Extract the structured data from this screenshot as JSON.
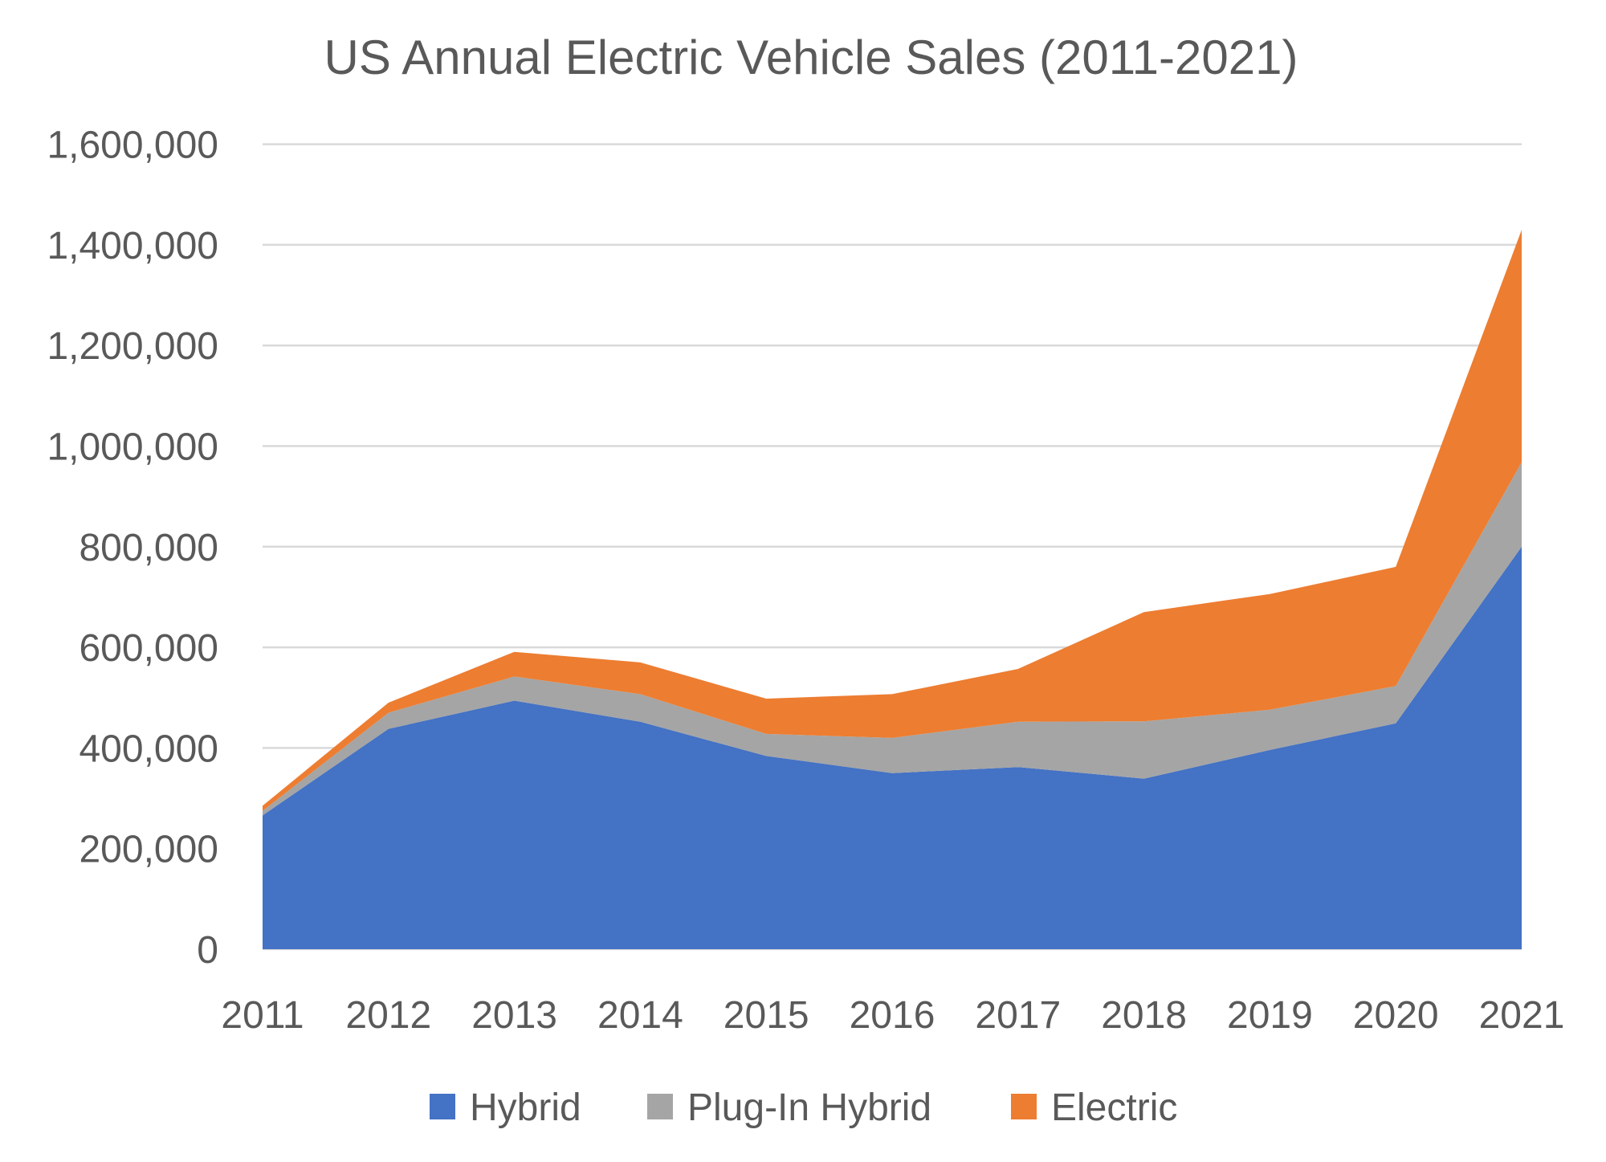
{
  "title": "US Annual Electric Vehicle Sales (2011-2021)",
  "colors": {
    "background": "#FFFFFF",
    "gridline": "#D9D9D9",
    "axis_text": "#595959",
    "title_text": "#595959",
    "hybrid": "#4472C4",
    "plug_in_hybrid": "#A5A5A5",
    "electric": "#ED7D31"
  },
  "chart_data": {
    "type": "area",
    "stacked": true,
    "title": "US Annual Electric Vehicle Sales (2011-2021)",
    "categories": [
      "2011",
      "2012",
      "2013",
      "2014",
      "2015",
      "2016",
      "2017",
      "2018",
      "2019",
      "2020",
      "2021"
    ],
    "series": [
      {
        "name": "Hybrid",
        "color": "#4472C4",
        "values": [
          266000,
          438000,
          494000,
          452000,
          384000,
          350000,
          362000,
          339000,
          396000,
          449000,
          800000
        ]
      },
      {
        "name": "Plug-In Hybrid",
        "color": "#A5A5A5",
        "values": [
          9000,
          32000,
          48000,
          55000,
          44000,
          70000,
          90000,
          114000,
          80000,
          74000,
          168000
        ]
      },
      {
        "name": "Electric",
        "color": "#ED7D31",
        "values": [
          10000,
          20000,
          49000,
          63000,
          70000,
          87000,
          105000,
          217000,
          230000,
          237000,
          462000
        ]
      }
    ],
    "stacked_totals": [
      285000,
      490000,
      591000,
      570000,
      498000,
      507000,
      557000,
      670000,
      706000,
      760000,
      1430000
    ],
    "ylim": [
      0,
      1600000
    ],
    "ytick_step": 200000,
    "ytick_labels": [
      "0",
      "200,000",
      "400,000",
      "600,000",
      "800,000",
      "1,000,000",
      "1,200,000",
      "1,400,000",
      "1,600,000"
    ],
    "xlabel": "",
    "ylabel": "",
    "grid": true,
    "legend_position": "bottom",
    "legend": [
      "Hybrid",
      "Plug-In Hybrid",
      "Electric"
    ]
  }
}
